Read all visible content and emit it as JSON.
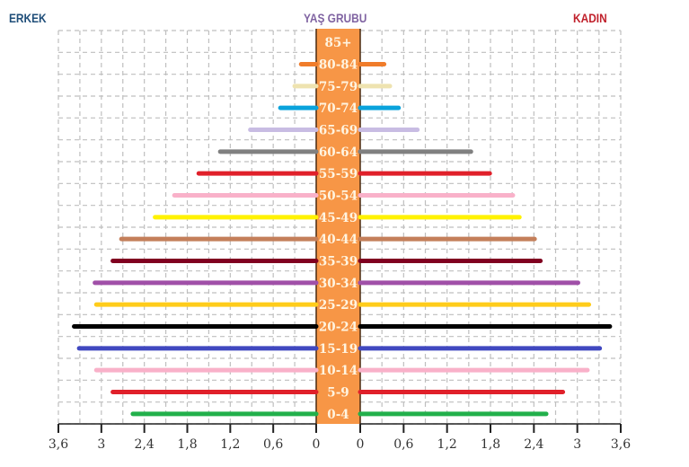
{
  "titles": {
    "left": "ERKEK",
    "center": "YAŞ GRUBU",
    "right": "KADIN",
    "left_color": "#1f4e79",
    "center_color": "#8064a2",
    "right_color": "#c0202b"
  },
  "colors": {
    "center_band": "#f79646",
    "center_border": "#4a2a10",
    "grid": "#bfbfbf",
    "axis": "#222222"
  },
  "chart_data": {
    "type": "bar",
    "subtype": "population-pyramid",
    "title": "",
    "left_series_name": "ERKEK",
    "right_series_name": "KADIN",
    "center_label": "YAŞ GRUBU",
    "categories": [
      "85+",
      "80-84",
      "75-79",
      "70-74",
      "65-69",
      "60-64",
      "55-59",
      "50-54",
      "45-49",
      "40-44",
      "35-39",
      "30-34",
      "25-29",
      "20-24",
      "15-19",
      "10-14",
      "5-9",
      "0-4"
    ],
    "series": [
      {
        "name": "ERKEK",
        "values": [
          0,
          0.21,
          0.3,
          0.5,
          0.92,
          1.34,
          1.64,
          1.98,
          2.25,
          2.72,
          2.84,
          3.09,
          3.07,
          3.38,
          3.31,
          3.07,
          2.84,
          2.56
        ]
      },
      {
        "name": "KADIN",
        "values": [
          0,
          0.33,
          0.41,
          0.53,
          0.79,
          1.53,
          1.79,
          2.11,
          2.2,
          2.41,
          2.49,
          3.01,
          3.16,
          3.45,
          3.31,
          3.14,
          2.8,
          2.57
        ]
      }
    ],
    "bar_colors": [
      "#f79646",
      "#f07c2a",
      "#eee3b0",
      "#0aa3dc",
      "#c8bce3",
      "#808080",
      "#e0202a",
      "#f9b1c9",
      "#fff200",
      "#c47f5a",
      "#800020",
      "#a050a8",
      "#ffcc1a",
      "#000000",
      "#4048c0",
      "#f9b1c9",
      "#e0202a",
      "#22b04b"
    ],
    "left_ticks": [
      "3,6",
      "3",
      "2,4",
      "1,8",
      "1,2",
      "0,6",
      "0"
    ],
    "right_ticks": [
      "0",
      "0,6",
      "1,2",
      "1,8",
      "2,4",
      "3",
      "3,6"
    ],
    "xlim": [
      0,
      3.6
    ],
    "grid": true,
    "grid_step": 0.3
  }
}
